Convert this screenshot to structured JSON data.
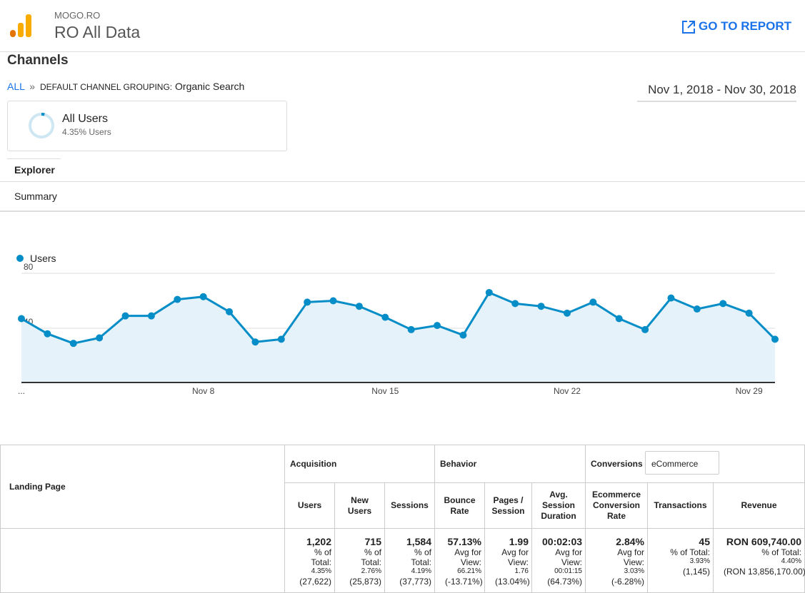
{
  "header": {
    "site": "MOGO.RO",
    "view": "RO All Data",
    "report_link": "GO TO REPORT"
  },
  "report_title": "Channels",
  "breadcrumb": {
    "root": "ALL",
    "separator": "»",
    "dimension": "DEFAULT CHANNEL GROUPING:",
    "value": "Organic Search"
  },
  "date_range": "Nov 1, 2018 - Nov 30, 2018",
  "segment": {
    "name": "All Users",
    "detail": "4.35% Users"
  },
  "tabs": [
    "Explorer",
    "Summary"
  ],
  "chart_data": {
    "type": "line",
    "categories": [
      "...",
      null,
      null,
      null,
      null,
      null,
      null,
      "Nov 8",
      null,
      null,
      null,
      null,
      null,
      null,
      "Nov 15",
      null,
      null,
      null,
      null,
      null,
      null,
      "Nov 22",
      null,
      null,
      null,
      null,
      null,
      null,
      "Nov 29",
      null
    ],
    "series": [
      {
        "name": "Users",
        "color": "#058dc7",
        "values": [
          47,
          36,
          29,
          33,
          49,
          49,
          61,
          63,
          52,
          30,
          32,
          59,
          60,
          56,
          48,
          39,
          42,
          35,
          66,
          58,
          56,
          51,
          59,
          47,
          39,
          62,
          54,
          58,
          51,
          32
        ]
      }
    ],
    "ylim": [
      0,
      80
    ],
    "yticks": [
      40,
      80
    ],
    "grid": true
  },
  "table": {
    "dimension": "Landing Page",
    "groups": [
      "Acquisition",
      "Behavior",
      "Conversions"
    ],
    "conversion_selector": "eCommerce",
    "columns": [
      "Users",
      "New Users",
      "Sessions",
      "Bounce Rate",
      "Pages / Session",
      "Avg. Session Duration",
      "Ecommerce Conversion Rate",
      "Transactions",
      "Revenue"
    ],
    "totals": [
      {
        "value": "1,202",
        "basis": "% of Total:",
        "share": "4.35%",
        "reference": "(27,622)"
      },
      {
        "value": "715",
        "basis": "% of Total:",
        "share": "2.76%",
        "reference": "(25,873)"
      },
      {
        "value": "1,584",
        "basis": "% of Total:",
        "share": "4.19%",
        "reference": "(37,773)"
      },
      {
        "value": "57.13%",
        "basis": "Avg for View:",
        "share": "66.21%",
        "reference": "(-13.71%)"
      },
      {
        "value": "1.99",
        "basis": "Avg for View:",
        "share": "1.76",
        "reference": "(13.04%)"
      },
      {
        "value": "00:02:03",
        "basis": "Avg for View:",
        "share": "00:01:15",
        "reference": "(64.73%)"
      },
      {
        "value": "2.84%",
        "basis": "Avg for View:",
        "share": "3.03%",
        "reference": "(-6.28%)"
      },
      {
        "value": "45",
        "basis": "% of Total:",
        "share": "3.93%",
        "reference": "(1,145)"
      },
      {
        "value": "RON 609,740.00",
        "basis": "% of Total:",
        "share": "4.40%",
        "reference": "(RON 13,856,170.00)"
      }
    ]
  }
}
